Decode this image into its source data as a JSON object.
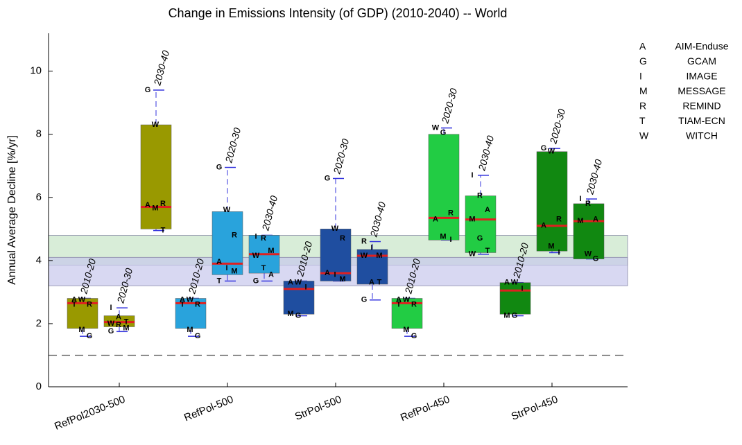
{
  "chart_data": {
    "type": "box",
    "title": "Change in Emissions Intensity (of GDP) (2010-2040) -- World",
    "y_label": "Annual Average Decline [%/yr]",
    "ylim": [
      0,
      11.2
    ],
    "yticks": [
      0,
      2,
      4,
      6,
      8,
      10
    ],
    "reference_line": 1,
    "bands": [
      {
        "range": [
          3.85,
          4.8
        ],
        "color": "#c8e6c8"
      },
      {
        "range": [
          3.2,
          4.1
        ],
        "color": "#c8c8ec"
      }
    ],
    "models": [
      {
        "code": "A",
        "name": "AIM-Enduse"
      },
      {
        "code": "G",
        "name": "GCAM"
      },
      {
        "code": "I",
        "name": "IMAGE"
      },
      {
        "code": "M",
        "name": "MESSAGE"
      },
      {
        "code": "R",
        "name": "REMIND"
      },
      {
        "code": "T",
        "name": "TIAM-ECN"
      },
      {
        "code": "W",
        "name": "WITCH"
      }
    ],
    "groups": [
      {
        "name": "RefPol2030-500",
        "color": "#999900",
        "boxes": [
          {
            "period": "2010-20",
            "min": 1.6,
            "q1": 1.85,
            "median": 2.65,
            "q3": 2.8,
            "max": 2.8,
            "points": [
              {
                "model": "A",
                "value": 2.75
              },
              {
                "model": "W",
                "value": 2.75
              },
              {
                "model": "R",
                "value": 2.6
              },
              {
                "model": "T",
                "value": 2.6
              },
              {
                "model": "M",
                "value": 1.8
              },
              {
                "model": "G",
                "value": 1.6
              }
            ]
          },
          {
            "period": "2020-30",
            "min": 1.75,
            "q1": 1.9,
            "median": 2.05,
            "q3": 2.25,
            "max": 2.5,
            "points": [
              {
                "model": "I",
                "value": 2.5
              },
              {
                "model": "A",
                "value": 2.2
              },
              {
                "model": "T",
                "value": 2.05
              },
              {
                "model": "W",
                "value": 2.0
              },
              {
                "model": "R",
                "value": 1.95
              },
              {
                "model": "M",
                "value": 1.85
              },
              {
                "model": "G",
                "value": 1.75
              }
            ]
          },
          {
            "period": "2030-40",
            "min": 4.95,
            "q1": 5.0,
            "median": 5.7,
            "q3": 8.3,
            "max": 9.4,
            "points": [
              {
                "model": "G",
                "value": 9.4
              },
              {
                "model": "W",
                "value": 8.3
              },
              {
                "model": "R",
                "value": 5.8
              },
              {
                "model": "A",
                "value": 5.75
              },
              {
                "model": "M",
                "value": 5.65
              },
              {
                "model": "T",
                "value": 4.95
              }
            ]
          }
        ]
      },
      {
        "name": "RefPol-500",
        "color": "#29a3dc",
        "boxes": [
          {
            "period": "2010-20",
            "min": 1.6,
            "q1": 1.85,
            "median": 2.65,
            "q3": 2.8,
            "max": 2.8,
            "points": [
              {
                "model": "A",
                "value": 2.75
              },
              {
                "model": "W",
                "value": 2.75
              },
              {
                "model": "R",
                "value": 2.6
              },
              {
                "model": "T",
                "value": 2.6
              },
              {
                "model": "M",
                "value": 1.8
              },
              {
                "model": "G",
                "value": 1.6
              }
            ]
          },
          {
            "period": "2020-30",
            "min": 3.35,
            "q1": 3.55,
            "median": 3.9,
            "q3": 5.55,
            "max": 6.95,
            "points": [
              {
                "model": "G",
                "value": 6.95
              },
              {
                "model": "W",
                "value": 5.6
              },
              {
                "model": "R",
                "value": 4.8
              },
              {
                "model": "A",
                "value": 3.95
              },
              {
                "model": "I",
                "value": 3.75
              },
              {
                "model": "M",
                "value": 3.65
              },
              {
                "model": "T",
                "value": 3.35
              }
            ]
          },
          {
            "period": "2030-40",
            "min": 3.35,
            "q1": 3.6,
            "median": 4.2,
            "q3": 4.8,
            "max": 4.8,
            "points": [
              {
                "model": "I",
                "value": 4.75
              },
              {
                "model": "R",
                "value": 4.7
              },
              {
                "model": "M",
                "value": 4.3
              },
              {
                "model": "W",
                "value": 4.15
              },
              {
                "model": "T",
                "value": 3.75
              },
              {
                "model": "A",
                "value": 3.55
              },
              {
                "model": "G",
                "value": 3.35
              }
            ]
          }
        ]
      },
      {
        "name": "StrPol-500",
        "color": "#1f4ea0",
        "boxes": [
          {
            "period": "2010-20",
            "min": 2.25,
            "q1": 2.3,
            "median": 3.1,
            "q3": 3.35,
            "max": 3.35,
            "points": [
              {
                "model": "A",
                "value": 3.3
              },
              {
                "model": "W",
                "value": 3.3
              },
              {
                "model": "I",
                "value": 3.15
              },
              {
                "model": "M",
                "value": 2.3
              },
              {
                "model": "G",
                "value": 2.25
              }
            ]
          },
          {
            "period": "2020-30",
            "min": 3.35,
            "q1": 3.35,
            "median": 3.6,
            "q3": 5.0,
            "max": 6.6,
            "points": [
              {
                "model": "G",
                "value": 6.6
              },
              {
                "model": "W",
                "value": 5.0
              },
              {
                "model": "R",
                "value": 4.7
              },
              {
                "model": "A",
                "value": 3.6
              },
              {
                "model": "I",
                "value": 3.55
              },
              {
                "model": "M",
                "value": 3.4
              }
            ]
          },
          {
            "period": "2030-40",
            "min": 2.75,
            "q1": 3.25,
            "median": 4.15,
            "q3": 4.35,
            "max": 4.6,
            "points": [
              {
                "model": "R",
                "value": 4.6
              },
              {
                "model": "I",
                "value": 4.4
              },
              {
                "model": "M",
                "value": 4.15
              },
              {
                "model": "W",
                "value": 4.15
              },
              {
                "model": "A",
                "value": 3.3
              },
              {
                "model": "T",
                "value": 3.3
              },
              {
                "model": "G",
                "value": 2.75
              }
            ]
          }
        ]
      },
      {
        "name": "RefPol-450",
        "color": "#22cc44",
        "boxes": [
          {
            "period": "2010-20",
            "min": 1.6,
            "q1": 1.85,
            "median": 2.65,
            "q3": 2.8,
            "max": 2.8,
            "points": [
              {
                "model": "A",
                "value": 2.75
              },
              {
                "model": "W",
                "value": 2.75
              },
              {
                "model": "R",
                "value": 2.6
              },
              {
                "model": "T",
                "value": 2.6
              },
              {
                "model": "M",
                "value": 1.8
              },
              {
                "model": "G",
                "value": 1.6
              }
            ]
          },
          {
            "period": "2020-30",
            "min": 4.65,
            "q1": 4.65,
            "median": 5.35,
            "q3": 8.0,
            "max": 8.2,
            "points": [
              {
                "model": "W",
                "value": 8.2
              },
              {
                "model": "G",
                "value": 8.05
              },
              {
                "model": "R",
                "value": 5.5
              },
              {
                "model": "A",
                "value": 5.3
              },
              {
                "model": "M",
                "value": 4.75
              },
              {
                "model": "I",
                "value": 4.65
              }
            ]
          },
          {
            "period": "2030-40",
            "min": 4.2,
            "q1": 4.25,
            "median": 5.3,
            "q3": 6.05,
            "max": 6.7,
            "points": [
              {
                "model": "I",
                "value": 6.7
              },
              {
                "model": "R",
                "value": 6.05
              },
              {
                "model": "A",
                "value": 5.6
              },
              {
                "model": "M",
                "value": 5.3
              },
              {
                "model": "G",
                "value": 4.7
              },
              {
                "model": "T",
                "value": 4.3
              },
              {
                "model": "W",
                "value": 4.2
              }
            ]
          }
        ]
      },
      {
        "name": "StrPol-450",
        "color": "#118811",
        "boxes": [
          {
            "period": "2010-20",
            "min": 2.25,
            "q1": 2.3,
            "median": 3.05,
            "q3": 3.3,
            "max": 3.3,
            "points": [
              {
                "model": "A",
                "value": 3.3
              },
              {
                "model": "W",
                "value": 3.3
              },
              {
                "model": "I",
                "value": 3.1
              },
              {
                "model": "M",
                "value": 2.25
              },
              {
                "model": "G",
                "value": 2.25
              }
            ]
          },
          {
            "period": "2020-30",
            "min": 4.25,
            "q1": 4.3,
            "median": 5.1,
            "q3": 7.45,
            "max": 7.55,
            "points": [
              {
                "model": "G",
                "value": 7.55
              },
              {
                "model": "W",
                "value": 7.45
              },
              {
                "model": "R",
                "value": 5.3
              },
              {
                "model": "A",
                "value": 5.1
              },
              {
                "model": "M",
                "value": 4.45
              },
              {
                "model": "I",
                "value": 4.25
              }
            ]
          },
          {
            "period": "2030-40",
            "min": 4.05,
            "q1": 4.05,
            "median": 5.25,
            "q3": 5.8,
            "max": 5.95,
            "points": [
              {
                "model": "I",
                "value": 5.95
              },
              {
                "model": "R",
                "value": 5.8
              },
              {
                "model": "A",
                "value": 5.3
              },
              {
                "model": "M",
                "value": 5.25
              },
              {
                "model": "W",
                "value": 4.2
              },
              {
                "model": "G",
                "value": 4.05
              }
            ]
          }
        ]
      }
    ]
  }
}
